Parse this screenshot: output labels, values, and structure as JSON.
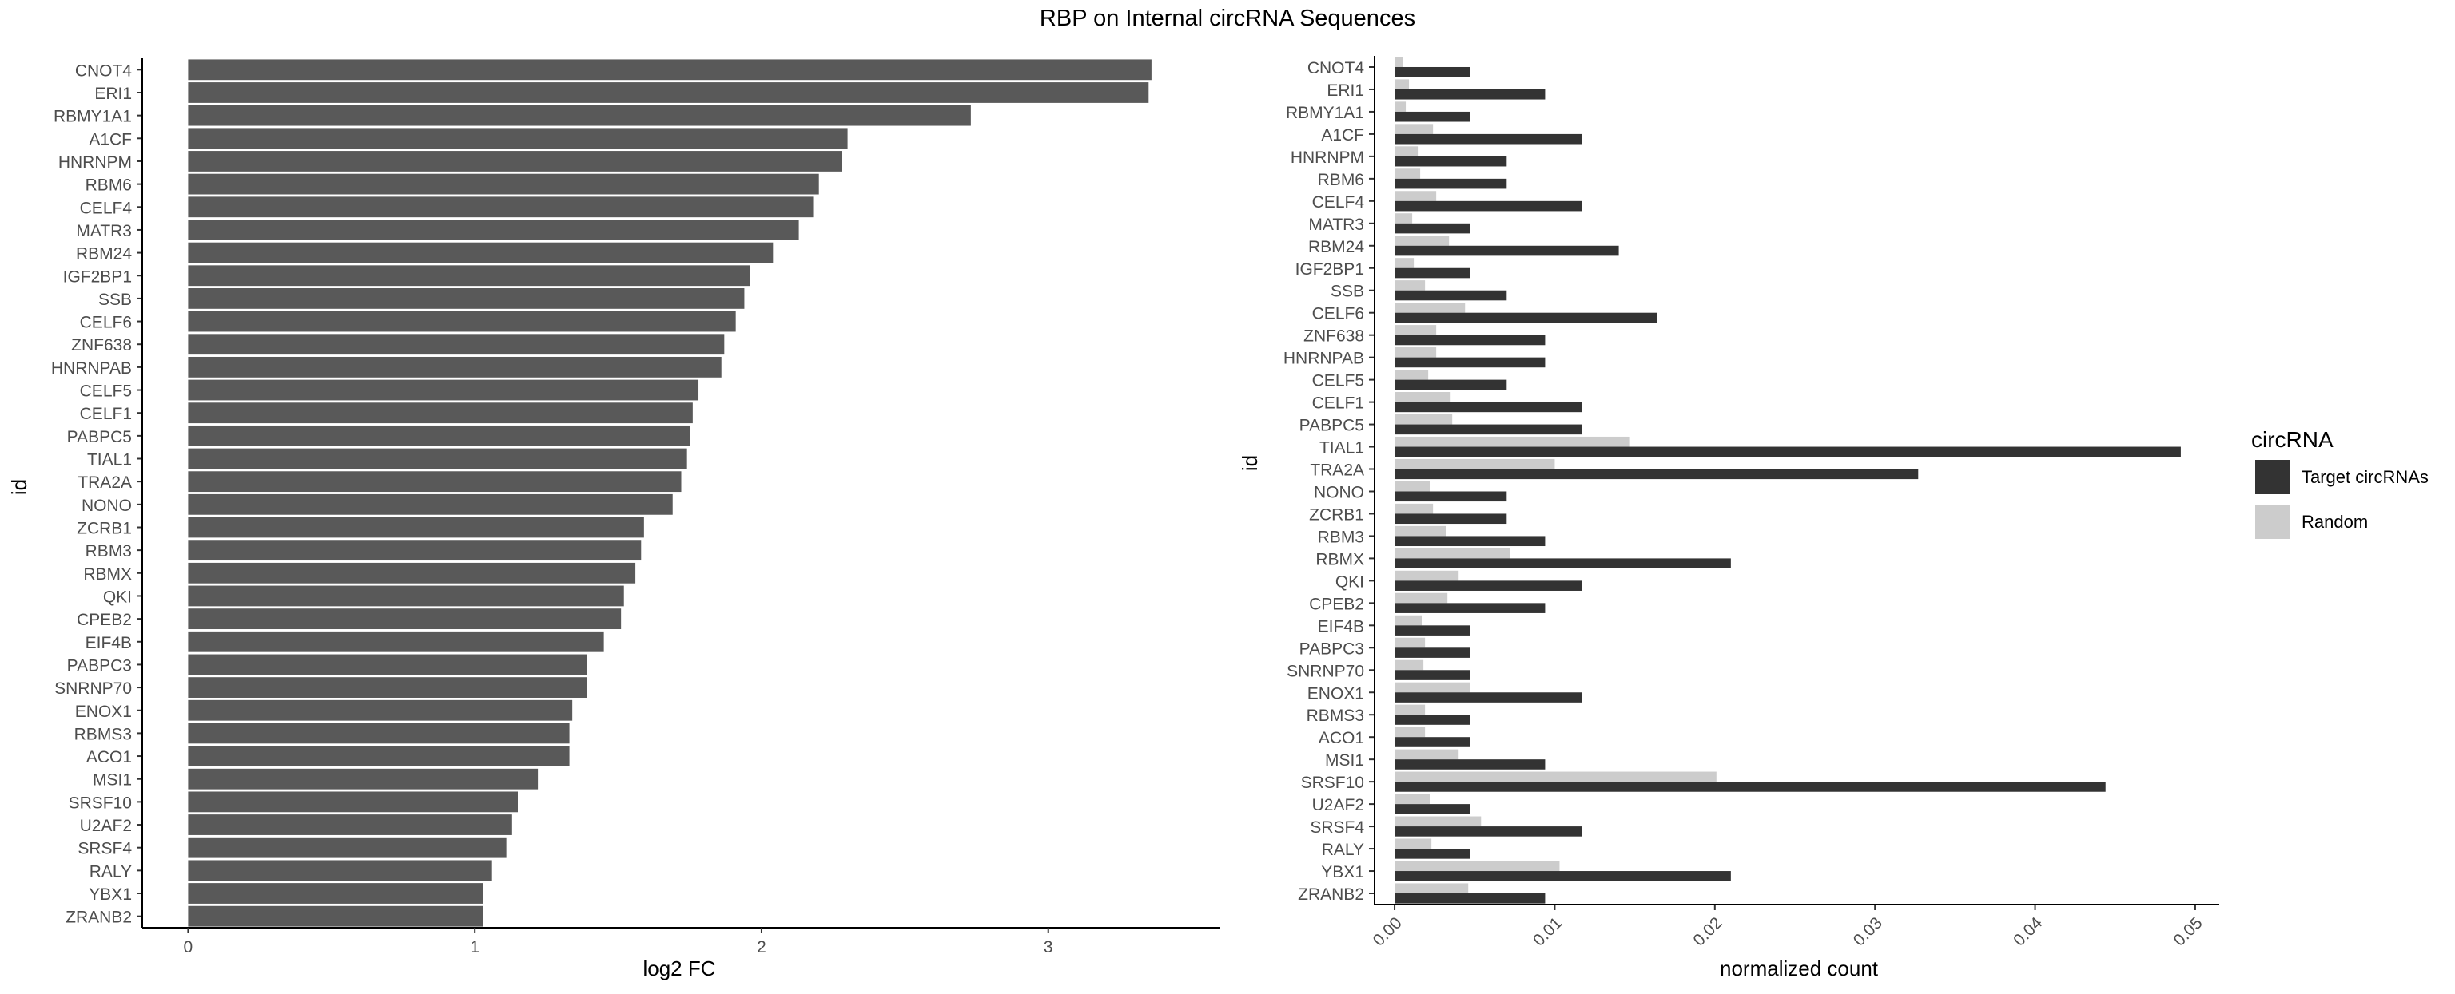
{
  "chart_data": [
    {
      "type": "bar",
      "orientation": "horizontal",
      "title": "RBP on Internal circRNA Sequences",
      "xlabel": "log2 FC",
      "ylabel": "id",
      "xlim": [
        -0.16,
        3.6
      ],
      "xticks": [
        0,
        1,
        2,
        3
      ],
      "grid": false,
      "bar_color": "#595959",
      "categories": [
        "CNOT4",
        "ERI1",
        "RBMY1A1",
        "A1CF",
        "HNRNPM",
        "RBM6",
        "CELF4",
        "MATR3",
        "RBM24",
        "IGF2BP1",
        "SSB",
        "CELF6",
        "ZNF638",
        "HNRNPAB",
        "CELF5",
        "CELF1",
        "PABPC5",
        "TIAL1",
        "TRA2A",
        "NONO",
        "ZCRB1",
        "RBM3",
        "RBMX",
        "QKI",
        "CPEB2",
        "EIF4B",
        "PABPC3",
        "SNRNP70",
        "ENOX1",
        "RBMS3",
        "ACO1",
        "MSI1",
        "SRSF10",
        "U2AF2",
        "SRSF4",
        "RALY",
        "YBX1",
        "ZRANB2"
      ],
      "values": [
        3.36,
        3.35,
        2.73,
        2.3,
        2.28,
        2.2,
        2.18,
        2.13,
        2.04,
        1.96,
        1.94,
        1.91,
        1.87,
        1.86,
        1.78,
        1.76,
        1.75,
        1.74,
        1.72,
        1.69,
        1.59,
        1.58,
        1.56,
        1.52,
        1.51,
        1.45,
        1.39,
        1.39,
        1.34,
        1.33,
        1.33,
        1.22,
        1.15,
        1.13,
        1.11,
        1.06,
        1.03,
        1.03
      ]
    },
    {
      "type": "bar",
      "orientation": "horizontal",
      "grouped": true,
      "xlabel": "normalized count",
      "ylabel": "id",
      "xlim": [
        -0.00125,
        0.0515
      ],
      "xticks": [
        0.0,
        0.01,
        0.02,
        0.03,
        0.04,
        0.05
      ],
      "xtick_labels": [
        "0.00",
        "0.01",
        "0.02",
        "0.03",
        "0.04",
        "0.05"
      ],
      "grid": false,
      "legend": {
        "title": "circRNA",
        "position": "right"
      },
      "categories": [
        "CNOT4",
        "ERI1",
        "RBMY1A1",
        "A1CF",
        "HNRNPM",
        "RBM6",
        "CELF4",
        "MATR3",
        "RBM24",
        "IGF2BP1",
        "SSB",
        "CELF6",
        "ZNF638",
        "HNRNPAB",
        "CELF5",
        "CELF1",
        "PABPC5",
        "TIAL1",
        "TRA2A",
        "NONO",
        "ZCRB1",
        "RBM3",
        "RBMX",
        "QKI",
        "CPEB2",
        "EIF4B",
        "PABPC3",
        "SNRNP70",
        "ENOX1",
        "RBMS3",
        "ACO1",
        "MSI1",
        "SRSF10",
        "U2AF2",
        "SRSF4",
        "RALY",
        "YBX1",
        "ZRANB2"
      ],
      "series": [
        {
          "name": "Target circRNAs",
          "color": "#333333",
          "values": [
            0.0047,
            0.0094,
            0.0047,
            0.0117,
            0.007,
            0.007,
            0.0117,
            0.0047,
            0.014,
            0.0047,
            0.007,
            0.0164,
            0.0094,
            0.0094,
            0.007,
            0.0117,
            0.0117,
            0.0491,
            0.0327,
            0.007,
            0.007,
            0.0094,
            0.021,
            0.0117,
            0.0094,
            0.0047,
            0.0047,
            0.0047,
            0.0117,
            0.0047,
            0.0047,
            0.0094,
            0.0444,
            0.0047,
            0.0117,
            0.0047,
            0.021,
            0.0094
          ]
        },
        {
          "name": "Random",
          "color": "#cccccc",
          "values": [
            0.0005,
            0.0009,
            0.0007,
            0.0024,
            0.0015,
            0.0016,
            0.0026,
            0.0011,
            0.0034,
            0.0012,
            0.0019,
            0.0044,
            0.0026,
            0.0026,
            0.0021,
            0.0035,
            0.0036,
            0.0147,
            0.01,
            0.0022,
            0.0024,
            0.0032,
            0.0072,
            0.004,
            0.0033,
            0.0017,
            0.0019,
            0.0018,
            0.0047,
            0.0019,
            0.0019,
            0.004,
            0.0201,
            0.0022,
            0.0054,
            0.0023,
            0.0103,
            0.0046
          ]
        }
      ]
    }
  ]
}
